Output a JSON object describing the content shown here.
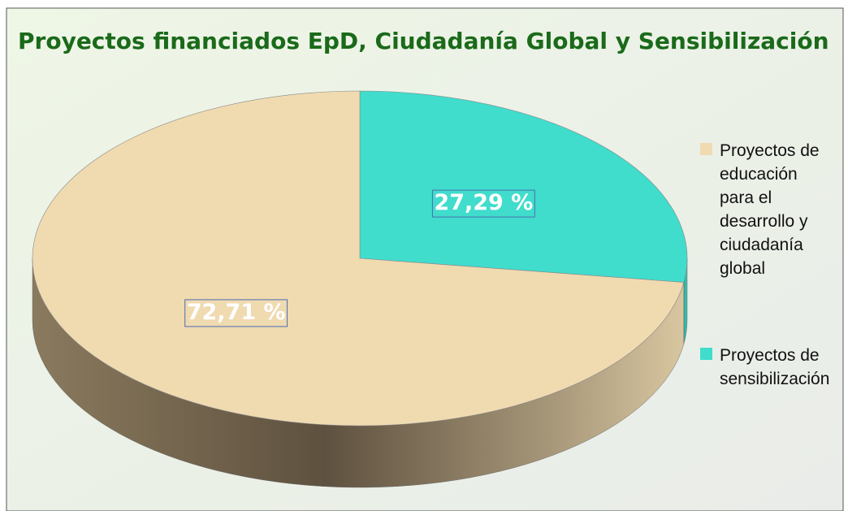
{
  "chart_data": {
    "type": "pie",
    "title": "Proyectos financiados EpD, Ciudadanía Global y Sensibilización",
    "categories": [
      "Proyectos de educación para el desarrollo y ciudadanía global",
      "Proyectos de sensibilización"
    ],
    "values": [
      72.71,
      27.29
    ],
    "value_labels": [
      "72,71 %",
      "27,29 %"
    ],
    "colors": [
      "#f0dab0",
      "#40dccc"
    ],
    "legend": "right"
  }
}
